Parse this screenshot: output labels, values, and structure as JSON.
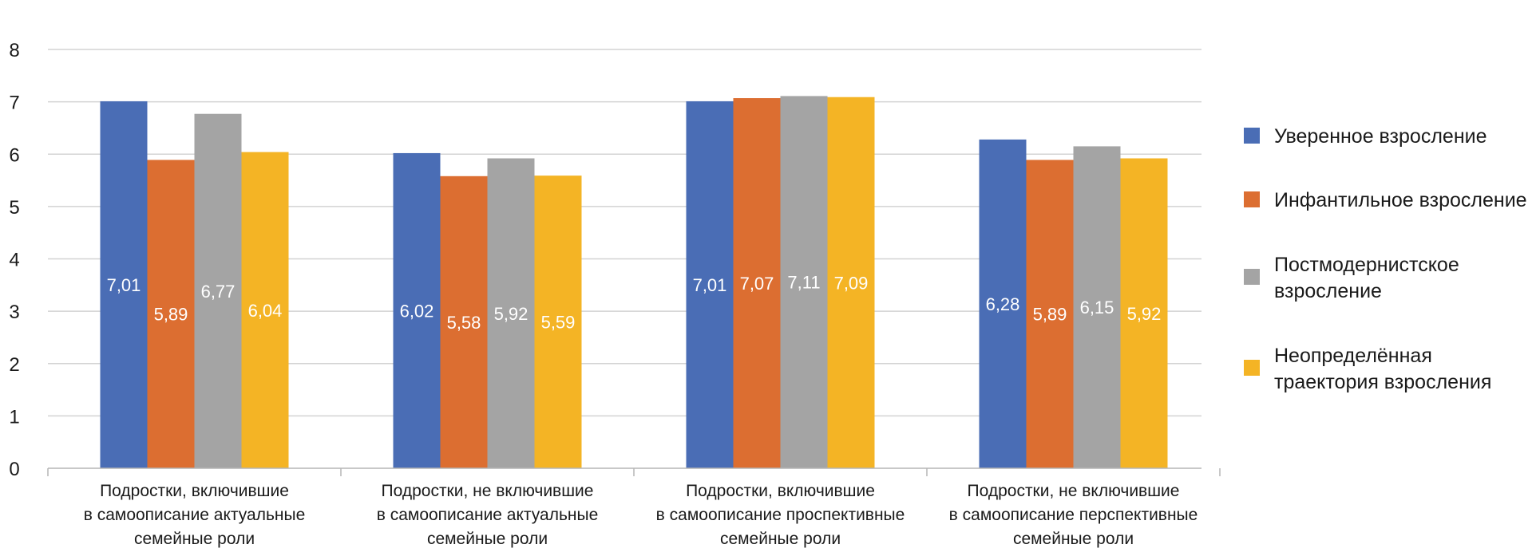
{
  "chart_data": {
    "type": "bar",
    "categories": [
      [
        "Подростки, включившие",
        "в самоописание актуальные",
        "семейные роли"
      ],
      [
        "Подростки, не включившие",
        "в самоописание актуальные",
        "семейные роли"
      ],
      [
        "Подростки, включившие",
        "в самоописание проспективные",
        "семейные роли"
      ],
      [
        "Подростки, не включившие",
        "в самоописание перспективные",
        "семейные роли"
      ]
    ],
    "series": [
      {
        "name": [
          "Уверенное взросление"
        ],
        "color": "#4a6db5",
        "values": [
          7.01,
          6.02,
          7.01,
          6.28
        ],
        "labels": [
          "7,01",
          "6,02",
          "7,01",
          "6,28"
        ]
      },
      {
        "name": [
          "Инфантильное взросление"
        ],
        "color": "#dc6e31",
        "values": [
          5.89,
          5.58,
          7.07,
          5.89
        ],
        "labels": [
          "5,89",
          "5,58",
          "7,07",
          "5,89"
        ]
      },
      {
        "name": [
          "Постмодернистское",
          "взросление"
        ],
        "color": "#a4a4a4",
        "values": [
          6.77,
          5.92,
          7.11,
          6.15
        ],
        "labels": [
          "6,77",
          "5,92",
          "7,11",
          "6,15"
        ]
      },
      {
        "name": [
          "Неопределённая",
          "траектория взросления"
        ],
        "color": "#f4b425",
        "values": [
          6.04,
          5.59,
          7.09,
          5.92
        ],
        "labels": [
          "6,04",
          "5,59",
          "7,09",
          "5,92"
        ]
      }
    ],
    "ylim": [
      0,
      8
    ],
    "yticks": [
      "0",
      "1",
      "2",
      "3",
      "4",
      "5",
      "6",
      "7",
      "8"
    ],
    "grid": true,
    "legend": "right",
    "gridColor": "#d3d3d3",
    "axisColor": "#b5b5b5"
  }
}
